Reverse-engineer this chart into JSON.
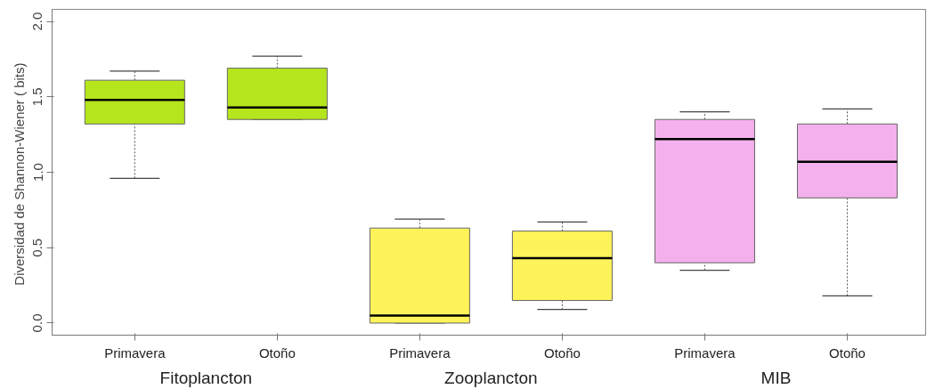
{
  "chart_data": {
    "type": "box",
    "ylabel": "Diversidad de Shannon-Wiener  ( bits)",
    "categories": [
      "Primavera",
      "Otoño",
      "Primavera",
      "Otoño",
      "Primavera",
      "Otoño"
    ],
    "annotations": [
      "Fitoplancton",
      "Zooplancton",
      "MIB"
    ],
    "colors": [
      "#b5e61d",
      "#b5e61d",
      "#fff35a",
      "#fff35a",
      "#f4b0ec",
      "#f4b0ec"
    ],
    "boxes": [
      {
        "low": 0.96,
        "q1": 1.32,
        "median": 1.48,
        "q3": 1.61,
        "high": 1.67
      },
      {
        "low": 1.35,
        "q1": 1.35,
        "median": 1.43,
        "q3": 1.69,
        "high": 1.77
      },
      {
        "low": 0.0,
        "q1": 0.0,
        "median": 0.05,
        "q3": 0.63,
        "high": 0.69
      },
      {
        "low": 0.09,
        "q1": 0.15,
        "median": 0.43,
        "q3": 0.61,
        "high": 0.67
      },
      {
        "low": 0.35,
        "q1": 0.4,
        "median": 1.22,
        "q3": 1.35,
        "high": 1.4
      },
      {
        "low": 0.18,
        "q1": 0.83,
        "median": 1.07,
        "q3": 1.32,
        "high": 1.42
      }
    ],
    "ylim": [
      -0.08,
      2.08
    ],
    "yticks": [
      {
        "value": 0,
        "label": "0.0"
      },
      0.5,
      {
        "value": 1,
        "label": "1.0"
      },
      1.5,
      {
        "value": 2,
        "label": "2.0"
      }
    ],
    "grid": false
  }
}
